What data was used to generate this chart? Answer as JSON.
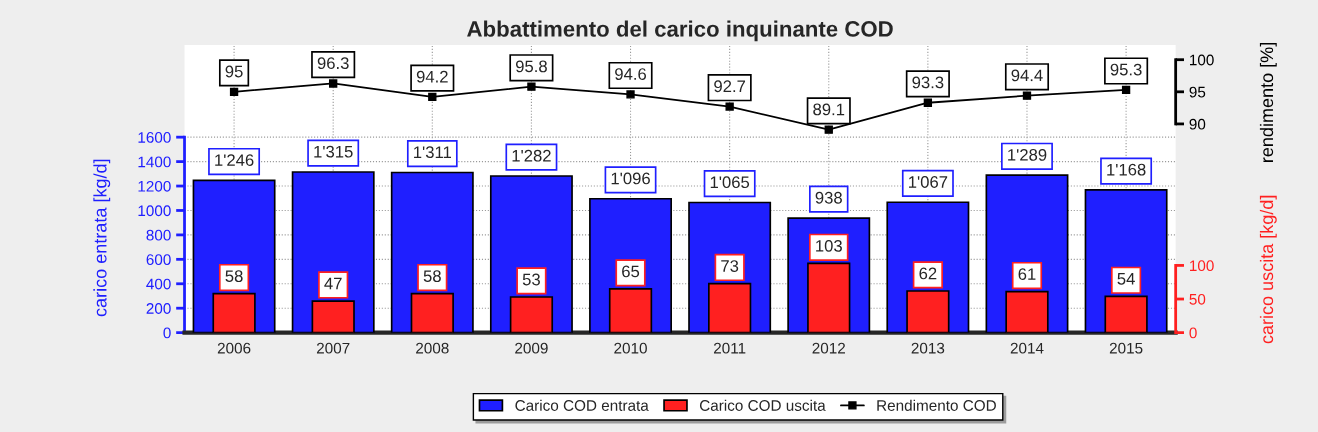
{
  "chart_data": {
    "type": "bar",
    "title": "Abbattimento del carico inquinante COD",
    "ylabel": "carico entrata [kg/d]",
    "y2label": "carico uscita [kg/d]",
    "y3label": "rendimento [%]",
    "categories": [
      "2006",
      "2007",
      "2008",
      "2009",
      "2010",
      "2011",
      "2012",
      "2013",
      "2014",
      "2015"
    ],
    "series": [
      {
        "name": "Carico COD entrata",
        "axis": "y",
        "color": "#1f1fff",
        "values": [
          1246,
          1315,
          1311,
          1282,
          1096,
          1065,
          938,
          1067,
          1289,
          1168
        ],
        "value_labels": [
          "1'246",
          "1'315",
          "1'311",
          "1'282",
          "1'096",
          "1'065",
          "938",
          "1'067",
          "1'289",
          "1'168"
        ]
      },
      {
        "name": "Carico COD uscita",
        "axis": "y2",
        "color": "#ff2020",
        "values": [
          58,
          47,
          58,
          53,
          65,
          73,
          103,
          62,
          61,
          54
        ],
        "value_labels": [
          "58",
          "47",
          "58",
          "53",
          "65",
          "73",
          "103",
          "62",
          "61",
          "54"
        ]
      },
      {
        "name": "Rendimento COD",
        "type": "line",
        "axis": "y3",
        "color": "#000000",
        "marker": "square",
        "values": [
          95,
          96.3,
          94.2,
          95.8,
          94.6,
          92.7,
          89.1,
          93.3,
          94.4,
          95.3
        ],
        "value_labels": [
          "95",
          "96.3",
          "94.2",
          "95.8",
          "94.6",
          "92.7",
          "89.1",
          "93.3",
          "94.4",
          "95.3"
        ]
      }
    ],
    "ylim": [
      0,
      2355
    ],
    "yticks": [
      0,
      200,
      400,
      600,
      800,
      1000,
      1200,
      1400,
      1600
    ],
    "y2lim": [
      0,
      428
    ],
    "y2ticks": [
      0,
      50,
      100
    ],
    "y3lim": [
      57.5,
      102.3
    ],
    "y3ticks": [
      90,
      95,
      100
    ],
    "grid": true,
    "legend": "bottom"
  }
}
